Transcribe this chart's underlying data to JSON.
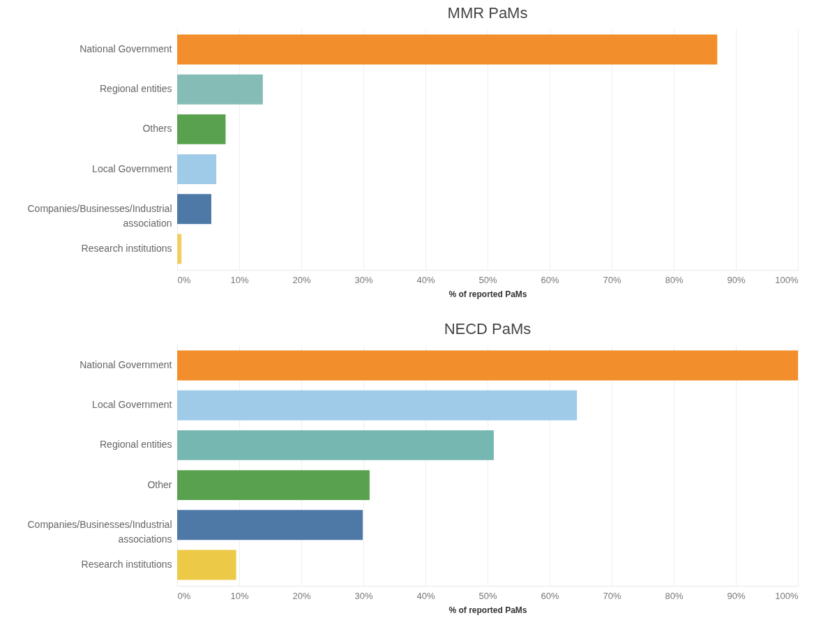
{
  "chart_data": [
    {
      "type": "bar",
      "orientation": "horizontal",
      "title": "MMR PaMs",
      "xlabel": "% of reported PaMs",
      "categories": [
        "National Government",
        "Regional entities",
        "Others",
        "Local Government",
        "Companies/Businesses/Industrial association",
        "Research institutions"
      ],
      "values": [
        87.0,
        13.8,
        7.8,
        6.3,
        5.5,
        0.7
      ],
      "colors": [
        "#f28e2b",
        "#86bcb6",
        "#59a14f",
        "#a0cbe8",
        "#4e79a7",
        "#f1ce63"
      ],
      "xlim": [
        0,
        100
      ],
      "xticks": [
        {
          "value": 0,
          "label": "0%"
        },
        {
          "value": 10,
          "label": "10%"
        },
        {
          "value": 20,
          "label": "20%"
        },
        {
          "value": 30,
          "label": "30%"
        },
        {
          "value": 40,
          "label": "40%"
        },
        {
          "value": 50,
          "label": "50%"
        },
        {
          "value": 60,
          "label": "60%"
        },
        {
          "value": 70,
          "label": "70%"
        },
        {
          "value": 80,
          "label": "80%"
        },
        {
          "value": 90,
          "label": "90%"
        },
        {
          "value": 100,
          "label": "100%"
        }
      ],
      "grid": "x"
    },
    {
      "type": "bar",
      "orientation": "horizontal",
      "title": "NECD PaMs",
      "xlabel": "% of reported PaMs",
      "categories": [
        "National Government",
        "Local Government",
        "Regional entities",
        "Other",
        "Companies/Businesses/Industrial associations",
        "Research institutions"
      ],
      "values": [
        100,
        64.4,
        51.0,
        31.0,
        29.9,
        9.5
      ],
      "colors": [
        "#f28e2b",
        "#a0cbe8",
        "#76b7b2",
        "#59a14f",
        "#4e79a7",
        "#edc948"
      ],
      "xlim": [
        0,
        100
      ],
      "xticks": [
        {
          "value": 0,
          "label": "0%"
        },
        {
          "value": 10,
          "label": "10%"
        },
        {
          "value": 20,
          "label": "20%"
        },
        {
          "value": 30,
          "label": "30%"
        },
        {
          "value": 40,
          "label": "40%"
        },
        {
          "value": 50,
          "label": "50%"
        },
        {
          "value": 60,
          "label": "60%"
        },
        {
          "value": 70,
          "label": "70%"
        },
        {
          "value": 80,
          "label": "80%"
        },
        {
          "value": 90,
          "label": "90%"
        },
        {
          "value": 100,
          "label": "100%"
        }
      ],
      "grid": "x"
    }
  ]
}
